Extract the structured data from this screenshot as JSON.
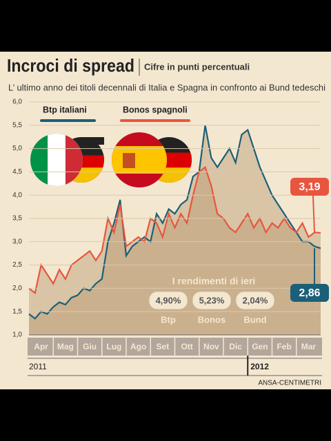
{
  "chart_data": {
    "type": "line",
    "title": "Incroci di spread",
    "subtitle": "Cifre in punti percentuali",
    "description": "L’ ultimo anno dei titoli decennali di Italia e Spagna in confronto ai Bund tedeschi",
    "x": [
      0,
      0.25,
      0.5,
      0.75,
      1,
      1.25,
      1.5,
      1.75,
      2,
      2.25,
      2.5,
      2.75,
      3,
      3.25,
      3.5,
      3.75,
      4,
      4.25,
      4.5,
      4.75,
      5,
      5.25,
      5.5,
      5.75,
      6,
      6.25,
      6.5,
      6.75,
      7,
      7.25,
      7.5,
      7.75,
      8,
      8.25,
      8.5,
      8.75,
      9,
      9.25,
      9.5,
      9.75,
      10,
      10.25,
      10.5,
      10.75,
      11,
      11.25,
      11.5,
      11.75,
      12
    ],
    "series": [
      {
        "name": "Btp italiani",
        "color": "#1b5f78",
        "values": [
          1.45,
          1.35,
          1.5,
          1.45,
          1.6,
          1.7,
          1.65,
          1.8,
          1.85,
          2.0,
          1.95,
          2.1,
          2.2,
          3.0,
          3.4,
          3.9,
          2.7,
          2.9,
          3.0,
          3.1,
          3.0,
          3.6,
          3.4,
          3.7,
          3.6,
          3.8,
          3.9,
          4.4,
          4.5,
          5.5,
          4.8,
          4.6,
          4.8,
          5.0,
          4.7,
          5.3,
          5.4,
          5.0,
          4.6,
          4.3,
          4.0,
          3.8,
          3.6,
          3.4,
          3.2,
          3.0,
          3.0,
          2.9,
          2.86
        ]
      },
      {
        "name": "Bonos spagnoli",
        "color": "#e8553f",
        "values": [
          2.0,
          1.9,
          2.5,
          2.3,
          2.1,
          2.4,
          2.2,
          2.5,
          2.6,
          2.7,
          2.8,
          2.6,
          2.8,
          3.5,
          3.2,
          3.8,
          2.9,
          3.0,
          3.1,
          3.0,
          3.5,
          3.4,
          3.1,
          3.6,
          3.3,
          3.6,
          3.4,
          4.0,
          4.5,
          4.6,
          4.2,
          3.6,
          3.5,
          3.3,
          3.2,
          3.4,
          3.6,
          3.3,
          3.5,
          3.2,
          3.4,
          3.3,
          3.5,
          3.3,
          3.2,
          3.4,
          3.1,
          3.2,
          3.19
        ]
      }
    ],
    "xlim": [
      0,
      12
    ],
    "xticks": [
      {
        "value": 0.5,
        "label": "Apr"
      },
      {
        "value": 1.5,
        "label": "Mag"
      },
      {
        "value": 2.5,
        "label": "Giu"
      },
      {
        "value": 3.5,
        "label": "Lug"
      },
      {
        "value": 4.5,
        "label": "Ago"
      },
      {
        "value": 5.5,
        "label": "Set"
      },
      {
        "value": 6.5,
        "label": "Ott"
      },
      {
        "value": 7.5,
        "label": "Nov"
      },
      {
        "value": 8.5,
        "label": "Dic"
      },
      {
        "value": 9.5,
        "label": "Gen"
      },
      {
        "value": 10.5,
        "label": "Feb"
      },
      {
        "value": 11.5,
        "label": "Mar"
      }
    ],
    "ylim": [
      1,
      6
    ],
    "yticks": [
      {
        "value": 1,
        "label": "1,0"
      },
      {
        "value": 1.5,
        "label": "1,5"
      },
      {
        "value": 2,
        "label": "2,0"
      },
      {
        "value": 2.5,
        "label": "2,5"
      },
      {
        "value": 3,
        "label": "3,0"
      },
      {
        "value": 3.5,
        "label": "3,5"
      },
      {
        "value": 4,
        "label": "4,0"
      },
      {
        "value": 4.5,
        "label": "4,5"
      },
      {
        "value": 5,
        "label": "5,0"
      },
      {
        "value": 5.5,
        "label": "5,5"
      },
      {
        "value": 6,
        "label": "6,0"
      }
    ],
    "grid": true,
    "end_labels": [
      "3,19",
      "2,86"
    ],
    "years": [
      "2011",
      "2012"
    ],
    "yields_title": "I rendimenti di ieri",
    "yields": [
      {
        "value": "4,90%",
        "name": "Btp"
      },
      {
        "value": "5,23%",
        "name": "Bonos"
      },
      {
        "value": "2,04%",
        "name": "Bund"
      }
    ],
    "source": "ANSA-CENTIMETRI"
  }
}
